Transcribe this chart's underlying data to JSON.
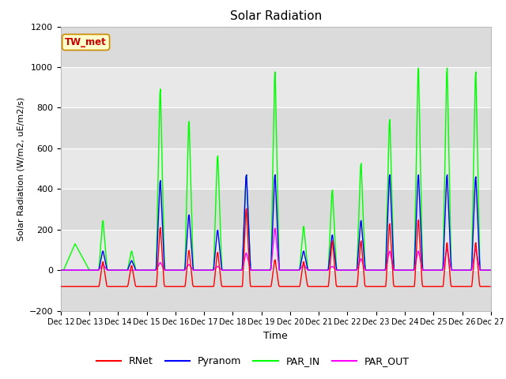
{
  "title": "Solar Radiation",
  "ylabel": "Solar Radiation (W/m2, uE/m2/s)",
  "xlabel": "Time",
  "ylim": [
    -200,
    1200
  ],
  "yticks": [
    -200,
    0,
    200,
    400,
    600,
    800,
    1000,
    1200
  ],
  "legend_label_text": "TW_met",
  "legend_box_color": "#ffffcc",
  "legend_box_edge": "#cc0000",
  "series_colors": {
    "RNet": "#ff0000",
    "Pyranom": "#0000ff",
    "PAR_IN": "#00ff00",
    "PAR_OUT": "#ff00ff"
  },
  "plot_bg_color": "#e8e8e8",
  "stripe_color": "#d0d0d0",
  "xtick_labels": [
    "Dec 12",
    "Dec 13",
    "Dec 14",
    "Dec 15",
    "Dec 16",
    "Dec 17",
    "Dec 18",
    "Dec 19",
    "Dec 20",
    "Dec 21",
    "Dec 22",
    "Dec 23",
    "Dec 24",
    "Dec 25",
    "Dec 26",
    "Dec 27"
  ]
}
